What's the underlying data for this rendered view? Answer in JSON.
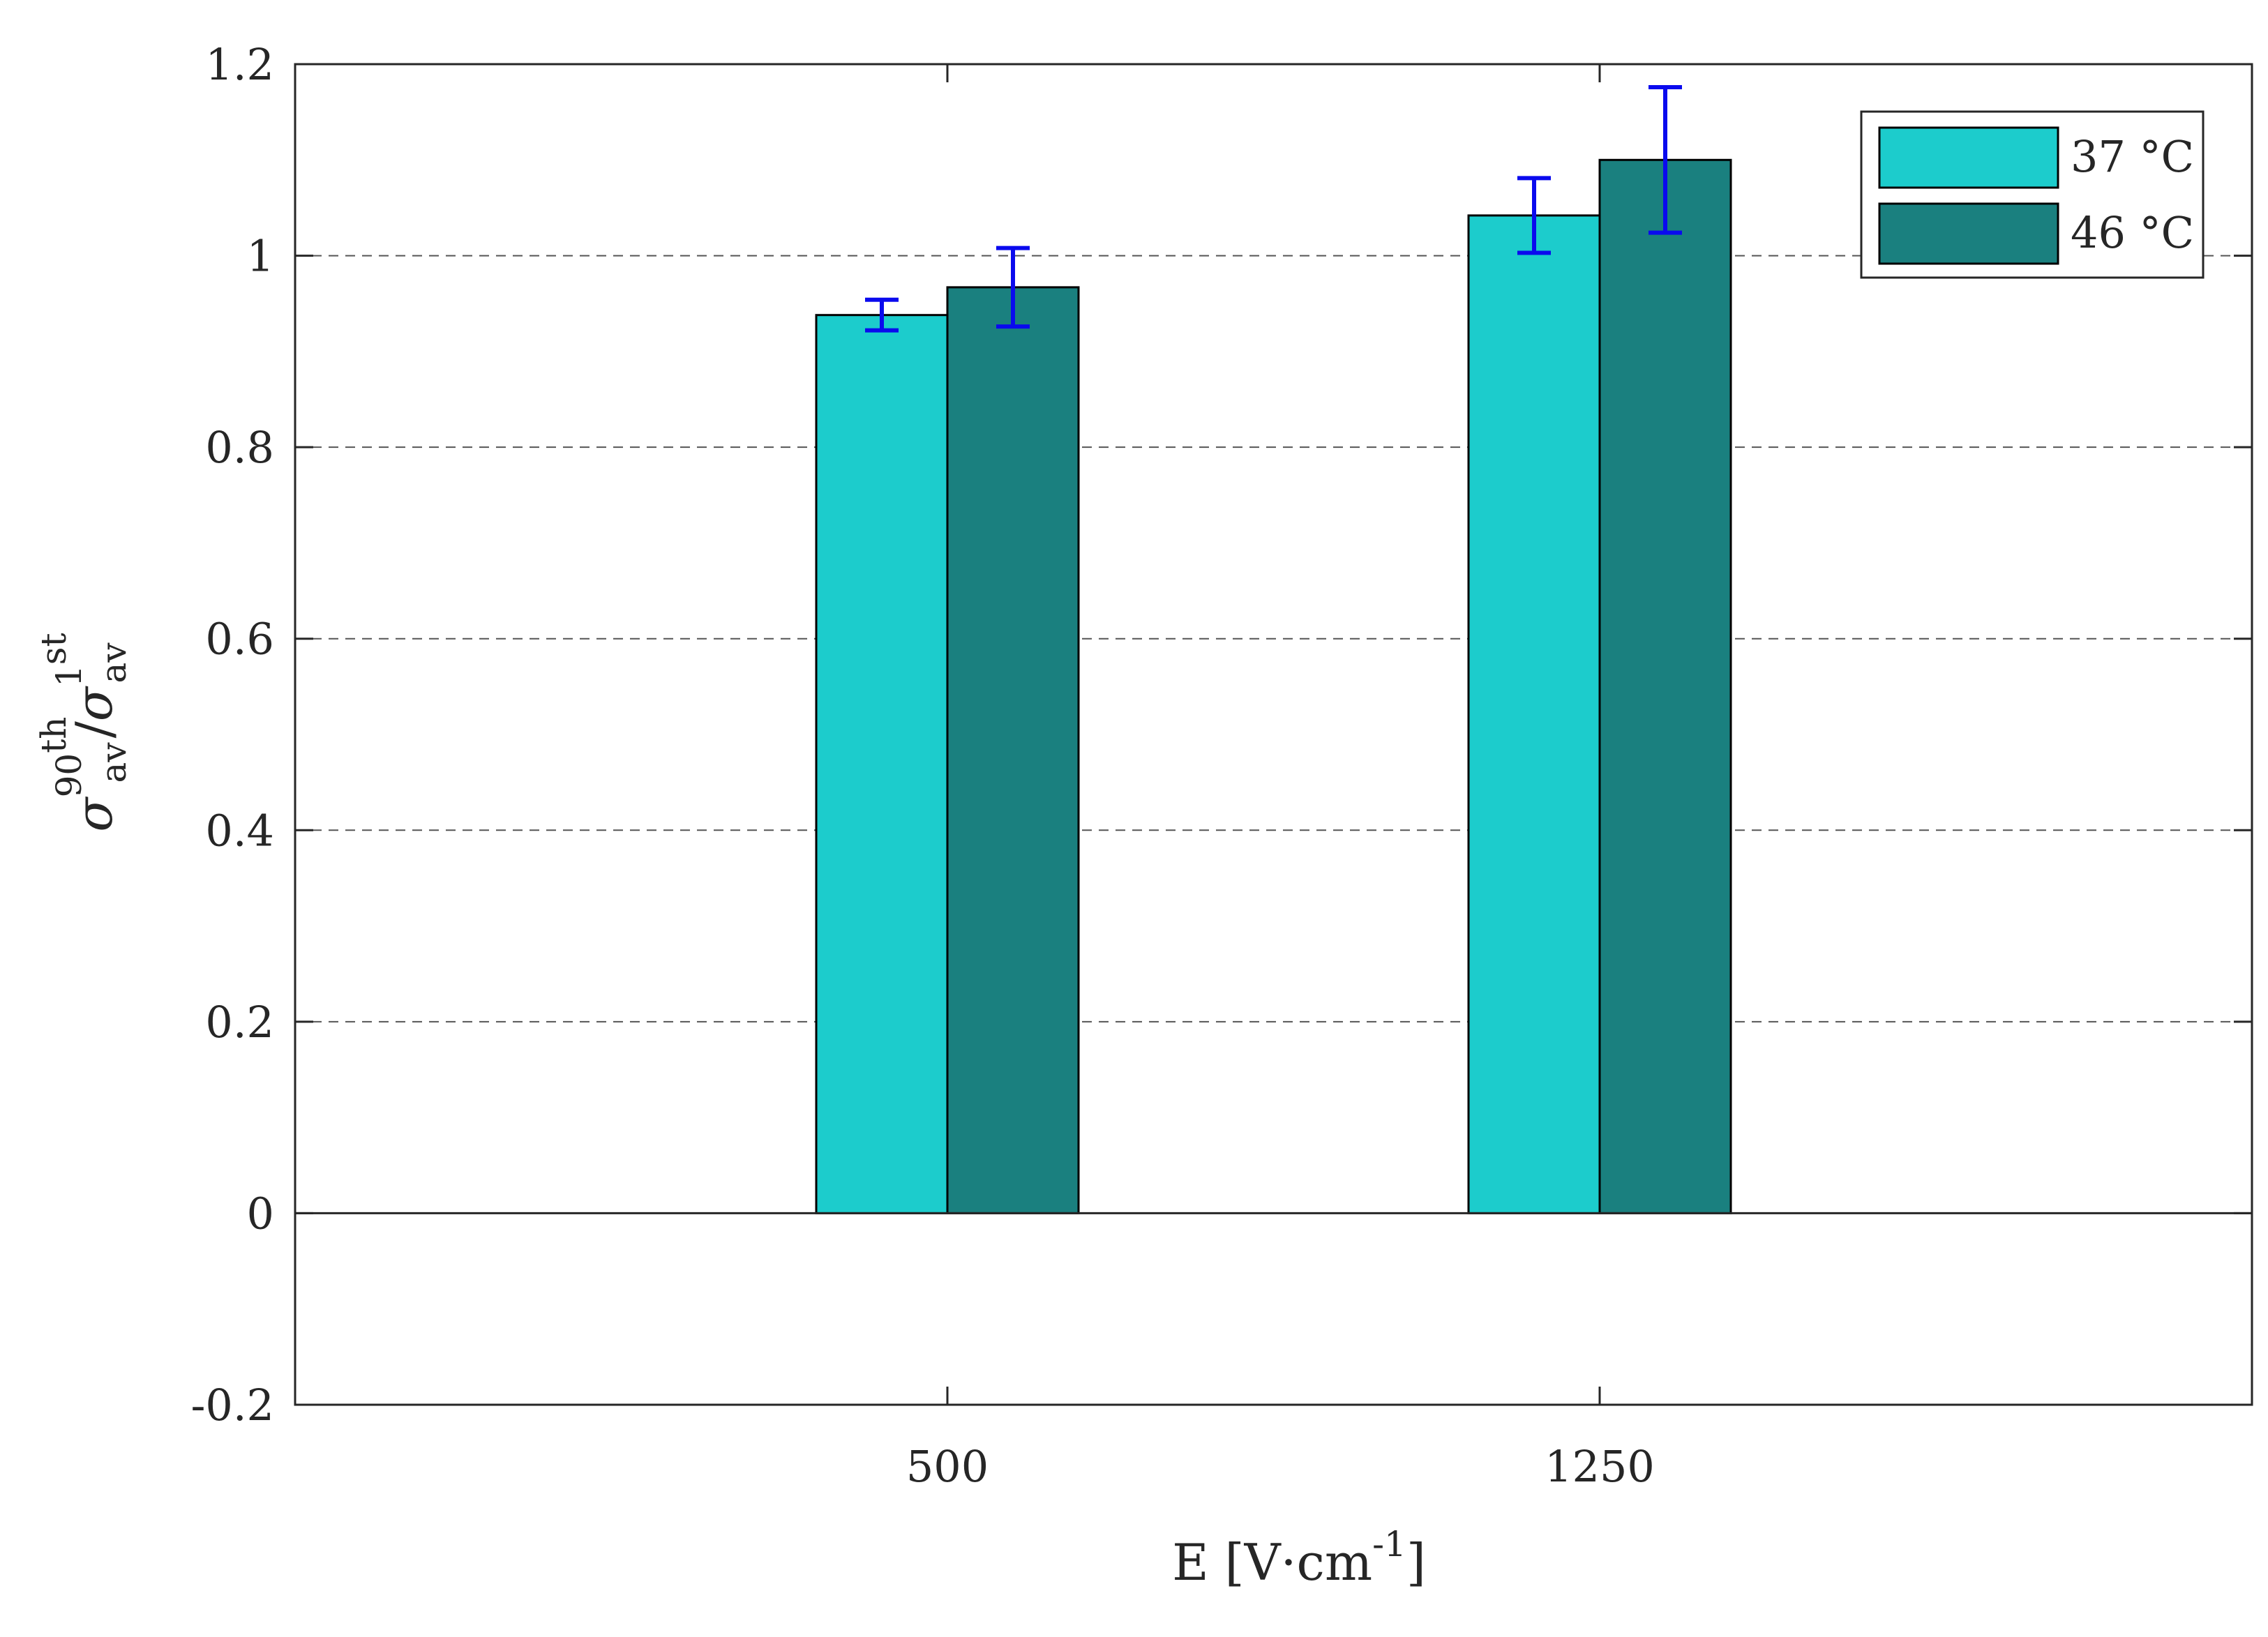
{
  "chart_data": {
    "type": "bar",
    "title": "",
    "categories": [
      "500",
      "1250"
    ],
    "series": [
      {
        "name": "37 °C",
        "color": "#1ccccc",
        "values": [
          0.938,
          1.042
        ],
        "errors": [
          0.016,
          0.039
        ]
      },
      {
        "name": "46 °C",
        "color": "#1a807f",
        "values": [
          0.967,
          1.1
        ],
        "errors": [
          0.041,
          0.076
        ]
      }
    ],
    "error_bar_color": "#0a0aee",
    "xlabel": {
      "base": "E [V·cm",
      "sup": "-1",
      "tail": "]"
    },
    "ylabel": {
      "sym1": "σ",
      "sub1": "av",
      "sup1": "90",
      "sup1b": "th",
      "slash": "/",
      "sym2": "σ",
      "sub2": "av",
      "sup2": "1",
      "sup2b": "st"
    },
    "ylim": [
      -0.2,
      1.2
    ],
    "yticks": [
      "-0.2",
      "0",
      "0.2",
      "0.4",
      "0.6",
      "0.8",
      "1",
      "1.2"
    ],
    "ytick_values": [
      -0.2,
      0,
      0.2,
      0.4,
      0.6,
      0.8,
      1.0,
      1.2
    ],
    "grid": "y-dashed",
    "legend_position": "top-right"
  }
}
